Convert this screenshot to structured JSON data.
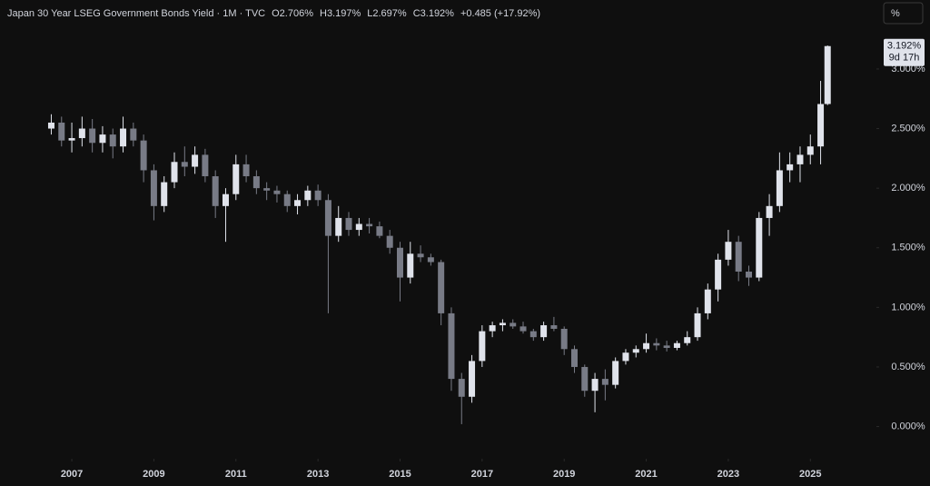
{
  "chart_data": {
    "type": "candlestick",
    "header": {
      "symbol": "Japan 30 Year LSEG Government Bonds Yield · 1M · TVC",
      "open_text": "O2.706%",
      "high_text": "H3.197%",
      "low_text": "L2.697%",
      "close_text": "C3.192%",
      "change_text": "+0.485 (+17.92%)"
    },
    "scale_button": "%",
    "last_price_label": "3.192%",
    "countdown_label": "9d 17h",
    "x": [
      2006.5,
      2006.75,
      2007.0,
      2007.25,
      2007.5,
      2007.75,
      2008.0,
      2008.25,
      2008.5,
      2008.75,
      2009.0,
      2009.25,
      2009.5,
      2009.75,
      2010.0,
      2010.25,
      2010.5,
      2010.75,
      2011.0,
      2011.25,
      2011.5,
      2011.75,
      2012.0,
      2012.25,
      2012.5,
      2012.75,
      2013.0,
      2013.25,
      2013.5,
      2013.75,
      2014.0,
      2014.25,
      2014.5,
      2014.75,
      2015.0,
      2015.25,
      2015.5,
      2015.75,
      2016.0,
      2016.25,
      2016.5,
      2016.75,
      2017.0,
      2017.25,
      2017.5,
      2017.75,
      2018.0,
      2018.25,
      2018.5,
      2018.75,
      2019.0,
      2019.25,
      2019.5,
      2019.75,
      2020.0,
      2020.25,
      2020.5,
      2020.75,
      2021.0,
      2021.25,
      2021.5,
      2021.75,
      2022.0,
      2022.25,
      2022.5,
      2022.75,
      2023.0,
      2023.25,
      2023.5,
      2023.75,
      2024.0,
      2024.25,
      2024.5,
      2024.75,
      2025.0,
      2025.25,
      2025.42
    ],
    "open": [
      2.5,
      2.55,
      2.4,
      2.42,
      2.5,
      2.38,
      2.45,
      2.35,
      2.5,
      2.4,
      2.15,
      1.85,
      2.05,
      2.22,
      2.18,
      2.28,
      2.1,
      1.85,
      1.95,
      2.2,
      2.1,
      2.0,
      1.98,
      1.95,
      1.85,
      1.9,
      1.98,
      1.9,
      1.6,
      1.75,
      1.65,
      1.7,
      1.68,
      1.6,
      1.5,
      1.25,
      1.45,
      1.42,
      1.38,
      0.95,
      0.4,
      0.25,
      0.55,
      0.8,
      0.85,
      0.87,
      0.84,
      0.8,
      0.75,
      0.85,
      0.82,
      0.65,
      0.5,
      0.3,
      0.4,
      0.35,
      0.55,
      0.62,
      0.65,
      0.7,
      0.68,
      0.66,
      0.7,
      0.75,
      0.95,
      1.15,
      1.4,
      1.55,
      1.3,
      1.25,
      1.75,
      1.85,
      2.15,
      2.2,
      2.28,
      2.35,
      2.706
    ],
    "high": [
      2.62,
      2.6,
      2.55,
      2.6,
      2.58,
      2.52,
      2.5,
      2.6,
      2.55,
      2.45,
      2.2,
      2.1,
      2.3,
      2.35,
      2.35,
      2.33,
      2.15,
      2.0,
      2.28,
      2.28,
      2.15,
      2.05,
      2.02,
      1.98,
      1.95,
      2.02,
      2.03,
      1.95,
      1.85,
      1.8,
      1.75,
      1.75,
      1.72,
      1.65,
      1.55,
      1.55,
      1.52,
      1.45,
      1.4,
      1.0,
      0.45,
      0.6,
      0.85,
      0.88,
      0.9,
      0.9,
      0.88,
      0.82,
      0.88,
      0.92,
      0.84,
      0.68,
      0.52,
      0.45,
      0.48,
      0.58,
      0.65,
      0.68,
      0.78,
      0.74,
      0.72,
      0.72,
      0.8,
      1.0,
      1.2,
      1.45,
      1.65,
      1.6,
      1.35,
      1.8,
      1.95,
      2.3,
      2.3,
      2.35,
      2.45,
      2.9,
      3.197
    ],
    "low": [
      2.45,
      2.35,
      2.3,
      2.35,
      2.3,
      2.3,
      2.25,
      2.3,
      2.35,
      2.05,
      1.73,
      1.8,
      2.0,
      2.1,
      2.12,
      2.05,
      1.75,
      1.55,
      1.9,
      2.05,
      1.95,
      1.9,
      1.88,
      1.8,
      1.78,
      1.85,
      1.85,
      0.95,
      1.55,
      1.6,
      1.6,
      1.62,
      1.58,
      1.45,
      1.05,
      1.2,
      1.38,
      1.35,
      0.85,
      0.3,
      0.02,
      0.2,
      0.5,
      0.75,
      0.8,
      0.82,
      0.78,
      0.72,
      0.72,
      0.8,
      0.6,
      0.45,
      0.25,
      0.12,
      0.22,
      0.32,
      0.52,
      0.58,
      0.62,
      0.64,
      0.63,
      0.64,
      0.68,
      0.72,
      0.9,
      1.05,
      1.35,
      1.22,
      1.18,
      1.22,
      1.6,
      1.8,
      2.05,
      2.05,
      2.2,
      2.2,
      2.697
    ],
    "close": [
      2.55,
      2.4,
      2.42,
      2.5,
      2.38,
      2.45,
      2.35,
      2.5,
      2.4,
      2.15,
      1.85,
      2.05,
      2.22,
      2.18,
      2.28,
      2.1,
      1.85,
      1.95,
      2.2,
      2.1,
      2.0,
      1.98,
      1.95,
      1.85,
      1.9,
      1.98,
      1.9,
      1.6,
      1.75,
      1.65,
      1.7,
      1.68,
      1.6,
      1.5,
      1.25,
      1.45,
      1.42,
      1.38,
      0.95,
      0.4,
      0.25,
      0.55,
      0.8,
      0.85,
      0.87,
      0.84,
      0.8,
      0.75,
      0.85,
      0.82,
      0.65,
      0.5,
      0.3,
      0.4,
      0.35,
      0.55,
      0.62,
      0.65,
      0.7,
      0.68,
      0.66,
      0.7,
      0.75,
      0.95,
      1.15,
      1.4,
      1.55,
      1.3,
      1.25,
      1.75,
      1.85,
      2.15,
      2.2,
      2.28,
      2.35,
      2.706,
      3.192
    ],
    "up_color": "#e0e3eb",
    "down_color": "#787b86",
    "xlim": [
      2005.25,
      2026.61
    ],
    "ylim": [
      -0.27,
      3.35
    ],
    "xticks": [
      2007,
      2009,
      2011,
      2013,
      2015,
      2017,
      2019,
      2021,
      2023,
      2025
    ],
    "yticks": [
      {
        "value": 0,
        "label": "0.000%"
      },
      {
        "value": 0.5,
        "label": "0.500%"
      },
      {
        "value": 1,
        "label": "1.000%"
      },
      {
        "value": 1.5,
        "label": "1.500%"
      },
      {
        "value": 2,
        "label": "2.000%"
      },
      {
        "value": 2.5,
        "label": "2.500%"
      },
      {
        "value": 3,
        "label": "3.000%"
      }
    ],
    "grid": false
  }
}
